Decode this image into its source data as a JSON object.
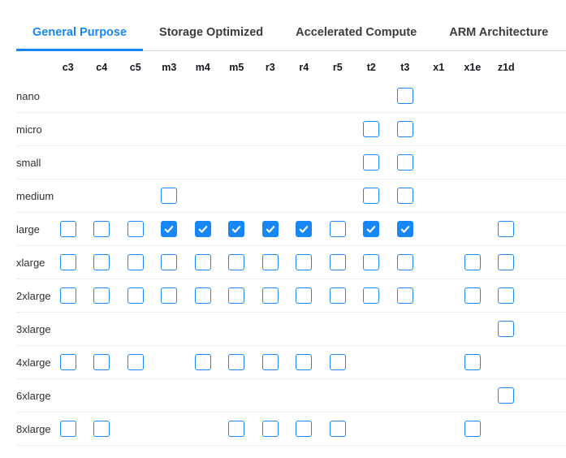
{
  "tabs": [
    {
      "label": "General Purpose",
      "active": true
    },
    {
      "label": "Storage Optimized",
      "active": false
    },
    {
      "label": "Accelerated Compute",
      "active": false
    },
    {
      "label": "ARM Architecture",
      "active": false
    }
  ],
  "colors": {
    "accent_blue": "#1787f5",
    "tab_inactive_text": "#3c3c3c",
    "row_separator": "#ebedef",
    "tab_bar_border": "#d8d8d8",
    "header_text": "#16191f",
    "checkmark": "#ffffff"
  },
  "icons": {
    "checkmark": "check-icon"
  },
  "matrix": {
    "columns": [
      "c3",
      "c4",
      "c5",
      "m3",
      "m4",
      "m5",
      "r3",
      "r4",
      "r5",
      "t2",
      "t3",
      "x1",
      "x1e",
      "z1d"
    ],
    "rows": [
      {
        "label": "nano",
        "cells": {
          "t3": "unchecked"
        }
      },
      {
        "label": "micro",
        "cells": {
          "t2": "unchecked",
          "t3": "unchecked"
        }
      },
      {
        "label": "small",
        "cells": {
          "t2": "unchecked",
          "t3": "unchecked"
        }
      },
      {
        "label": "medium",
        "cells": {
          "m3": "unchecked",
          "t2": "unchecked",
          "t3": "unchecked"
        }
      },
      {
        "label": "large",
        "cells": {
          "c3": "unchecked",
          "c4": "unchecked",
          "c5": "unchecked",
          "m3": "checked",
          "m4": "checked",
          "m5": "checked",
          "r3": "checked",
          "r4": "checked",
          "r5": "unchecked",
          "t2": "checked",
          "t3": "checked",
          "z1d": "unchecked"
        }
      },
      {
        "label": "xlarge",
        "cells": {
          "c3": "unchecked",
          "c4": "unchecked",
          "c5": "unchecked",
          "m3": "unchecked",
          "m4": "unchecked",
          "m5": "unchecked",
          "r3": "unchecked",
          "r4": "unchecked",
          "r5": "unchecked",
          "t2": "unchecked",
          "t3": "unchecked",
          "x1e": "unchecked",
          "z1d": "unchecked"
        }
      },
      {
        "label": "2xlarge",
        "cells": {
          "c3": "unchecked",
          "c4": "unchecked",
          "c5": "unchecked",
          "m3": "unchecked",
          "m4": "unchecked",
          "m5": "unchecked",
          "r3": "unchecked",
          "r4": "unchecked",
          "r5": "unchecked",
          "t2": "unchecked",
          "t3": "unchecked",
          "x1e": "unchecked",
          "z1d": "unchecked"
        }
      },
      {
        "label": "3xlarge",
        "cells": {
          "z1d": "unchecked"
        }
      },
      {
        "label": "4xlarge",
        "cells": {
          "c3": "unchecked",
          "c4": "unchecked",
          "c5": "unchecked",
          "m4": "unchecked",
          "m5": "unchecked",
          "r3": "unchecked",
          "r4": "unchecked",
          "r5": "unchecked",
          "x1e": "unchecked"
        }
      },
      {
        "label": "6xlarge",
        "cells": {
          "z1d": "unchecked"
        }
      },
      {
        "label": "8xlarge",
        "cells": {
          "c3": "unchecked",
          "c4": "unchecked",
          "m5": "unchecked",
          "r3": "unchecked",
          "r4": "unchecked",
          "r5": "unchecked",
          "x1e": "unchecked"
        }
      }
    ]
  }
}
